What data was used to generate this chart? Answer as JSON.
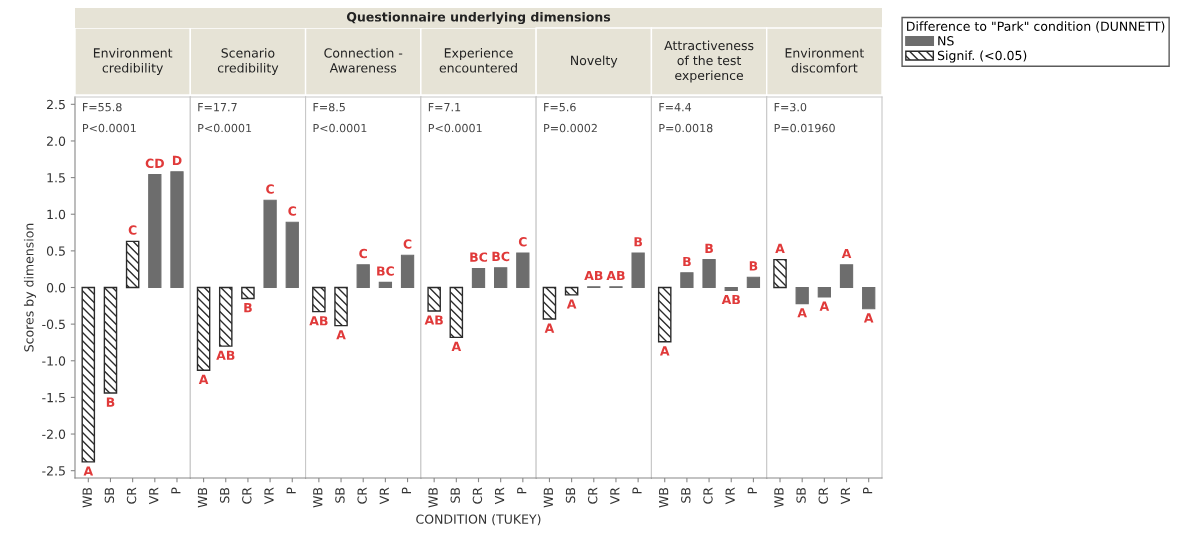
{
  "chart_data": [
    {
      "type": "bar",
      "title": "Environment\ncredibility",
      "ylabel": "Scores by dimension",
      "categories": [
        "WB",
        "SB",
        "CR",
        "VR",
        "P"
      ],
      "stacked": true,
      "ylim": [
        -2.6,
        2.6
      ],
      "yticks": [
        {
          "value": -2.5,
          "label": "-2.5"
        },
        {
          "value": -2,
          "label": "-2.0"
        },
        {
          "value": -1.5,
          "label": "-1.5"
        },
        {
          "value": -1,
          "label": "-1.0"
        },
        {
          "value": -0.5,
          "label": "-0.5"
        },
        {
          "value": 0,
          "label": "0.0"
        },
        {
          "value": 0.5,
          "label": "0.5"
        },
        {
          "value": 1,
          "label": "1.0"
        },
        {
          "value": 1.5,
          "label": "1.5"
        },
        {
          "value": 2,
          "label": "2.0"
        },
        {
          "value": 2.5,
          "label": "2.5"
        }
      ],
      "annotations": [
        "F=55.8",
        "P<0.0001"
      ],
      "series": [
        {
          "color": "#6d6d6d",
          "values": [
            null,
            null,
            null,
            1.54,
            1.58
          ],
          "value_labels": [
            null,
            null,
            null,
            "CD",
            "D"
          ]
        },
        {
          "color": "#2b2b2b",
          "values": [
            -2.38,
            -1.44,
            0.63,
            null,
            null
          ],
          "value_labels": [
            "A",
            "B",
            "C",
            null,
            null
          ]
        }
      ]
    },
    {
      "type": "bar",
      "title": "Scenario\ncredibility",
      "categories": [
        "WB",
        "SB",
        "CR",
        "VR",
        "P"
      ],
      "stacked": true,
      "ylim": [
        -2.6,
        2.6
      ],
      "tick_labels": "x",
      "annotations": [
        "F=17.7",
        "P<0.0001"
      ],
      "series": [
        {
          "color": "#6d6d6d",
          "values": [
            null,
            null,
            null,
            1.19,
            0.89
          ],
          "value_labels": [
            null,
            null,
            null,
            "C",
            "C"
          ]
        },
        {
          "color": "#2b2b2b",
          "values": [
            -1.13,
            -0.8,
            -0.15,
            null,
            null
          ],
          "value_labels": [
            "A",
            "AB",
            "B",
            null,
            null
          ]
        }
      ]
    },
    {
      "type": "bar",
      "title": "Connection -\nAwareness",
      "categories": [
        "WB",
        "SB",
        "CR",
        "VR",
        "P"
      ],
      "stacked": true,
      "ylim": [
        -2.6,
        2.6
      ],
      "tick_labels": "x",
      "annotations": [
        "F=8.5",
        "P<0.0001"
      ],
      "series": [
        {
          "color": "#6d6d6d",
          "values": [
            null,
            null,
            0.31,
            0.07,
            0.44
          ],
          "value_labels": [
            null,
            null,
            "C",
            "BC",
            "C"
          ]
        },
        {
          "color": "#2b2b2b",
          "values": [
            -0.33,
            -0.52,
            null,
            null,
            null
          ],
          "value_labels": [
            "AB",
            "A",
            null,
            null,
            null
          ]
        }
      ]
    },
    {
      "type": "bar",
      "subtitle": "Questionnaire underlying dimensions",
      "title": "Experience\nencountered",
      "xlabel": "CONDITION (TUKEY)",
      "categories": [
        "WB",
        "SB",
        "CR",
        "VR",
        "P"
      ],
      "stacked": true,
      "ylim": [
        -2.6,
        2.6
      ],
      "tick_labels": "x",
      "annotations": [
        "F=7.1",
        "P<0.0001"
      ],
      "series": [
        {
          "color": "#6d6d6d",
          "values": [
            null,
            null,
            0.26,
            0.27,
            0.47
          ],
          "value_labels": [
            null,
            null,
            "BC",
            "BC",
            "C"
          ]
        },
        {
          "color": "#2b2b2b",
          "values": [
            -0.32,
            -0.68,
            null,
            null,
            null
          ],
          "value_labels": [
            "AB",
            "A",
            null,
            null,
            null
          ]
        }
      ]
    },
    {
      "type": "bar",
      "title": "Novelty",
      "categories": [
        "WB",
        "SB",
        "CR",
        "VR",
        "P"
      ],
      "stacked": true,
      "ylim": [
        -2.6,
        2.6
      ],
      "tick_labels": "x",
      "annotations": [
        "F=5.6",
        "P=0.0002"
      ],
      "series": [
        {
          "color": "#6d6d6d",
          "values": [
            null,
            null,
            0.01,
            0.01,
            0.47
          ],
          "value_labels": [
            null,
            null,
            "AB",
            "AB",
            "B"
          ]
        },
        {
          "color": "#2b2b2b",
          "values": [
            -0.43,
            -0.1,
            null,
            null,
            null
          ],
          "value_labels": [
            "A",
            "A",
            null,
            null,
            null
          ]
        }
      ]
    },
    {
      "type": "bar",
      "title": "Attractiveness\nof the test\nexperience",
      "categories": [
        "WB",
        "SB",
        "CR",
        "VR",
        "P"
      ],
      "stacked": true,
      "ylim": [
        -2.6,
        2.6
      ],
      "tick_labels": "x",
      "annotations": [
        "F=4.4",
        "P=0.0018"
      ],
      "series": [
        {
          "color": "#6d6d6d",
          "values": [
            null,
            0.2,
            0.38,
            -0.04,
            0.14
          ],
          "value_labels": [
            null,
            "B",
            "B",
            "AB",
            "B"
          ]
        },
        {
          "color": "#2b2b2b",
          "values": [
            -0.74,
            null,
            null,
            null,
            null
          ],
          "value_labels": [
            "A",
            null,
            null,
            null,
            null
          ]
        }
      ]
    },
    {
      "type": "bar",
      "title": "Environment\ndiscomfort",
      "categories": [
        "WB",
        "SB",
        "CR",
        "VR",
        "P"
      ],
      "stacked": true,
      "ylim": [
        -2.6,
        2.6
      ],
      "tick_labels": "x",
      "annotations": [
        "F=3.0",
        "P=0.01960"
      ],
      "legend": "right",
      "legend_title": "Difference to \"Park\" condition (DUNNETT)",
      "series": [
        {
          "name": "NS",
          "color": "#6d6d6d",
          "values": [
            null,
            -0.22,
            -0.13,
            0.31,
            -0.29
          ],
          "value_labels": [
            null,
            "A",
            "A",
            "A",
            "A"
          ]
        },
        {
          "name": "Signif. (<0.05)",
          "color": "#2b2b2b",
          "values": [
            0.38,
            null,
            null,
            null,
            null
          ],
          "value_labels": [
            "A",
            null,
            null,
            null,
            null
          ]
        }
      ]
    }
  ]
}
